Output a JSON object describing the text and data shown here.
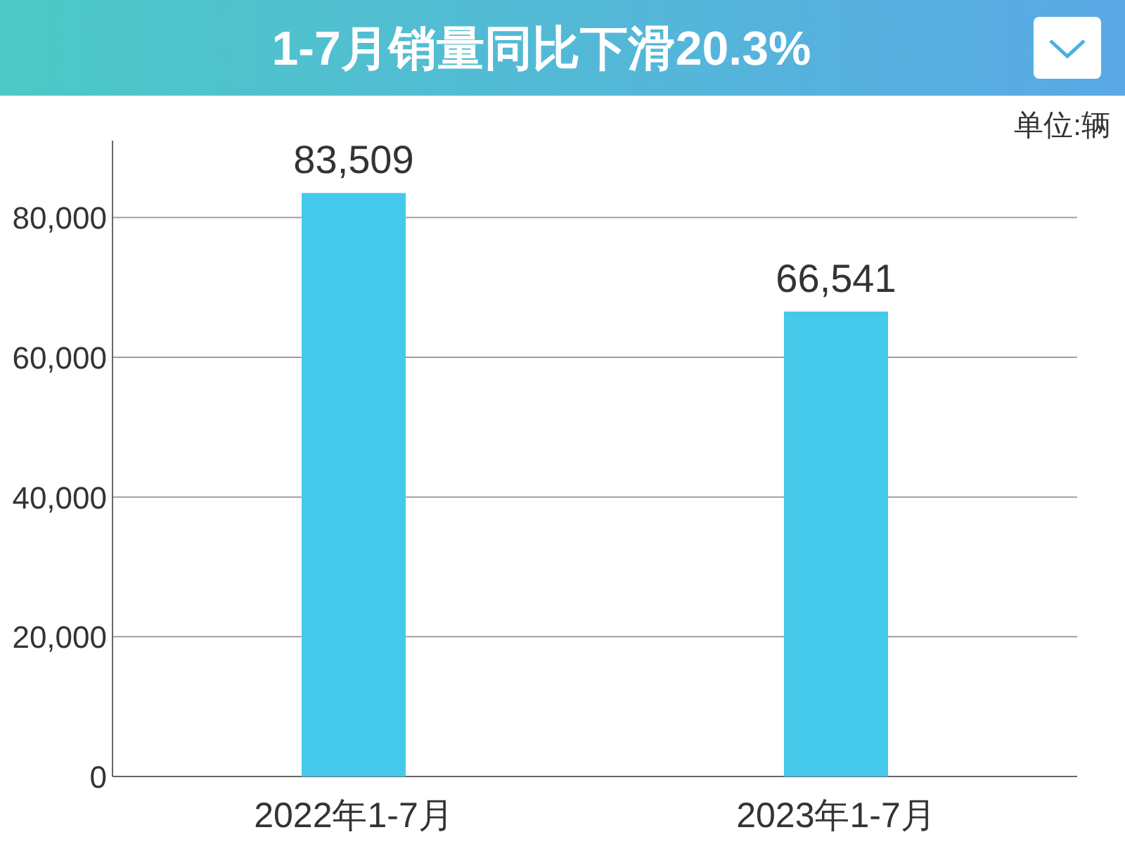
{
  "chart_data": {
    "type": "bar",
    "title": "1-7月销量同比下滑20.3%",
    "annotations": [
      "单位:辆"
    ],
    "categories": [
      "2022年1-7月",
      "2023年1-7月"
    ],
    "values": [
      83509,
      66541
    ],
    "value_labels": [
      "83,509",
      "66,541"
    ],
    "color": "#45c9ea",
    "ylim": [
      0,
      91000
    ],
    "yticks": [
      {
        "value": 0,
        "label": "0"
      },
      {
        "value": 20000,
        "label": "20,000"
      },
      {
        "value": 40000,
        "label": "40,000"
      },
      {
        "value": 60000,
        "label": "60,000"
      },
      {
        "value": 80000,
        "label": "80,000"
      }
    ],
    "grid": "y"
  }
}
